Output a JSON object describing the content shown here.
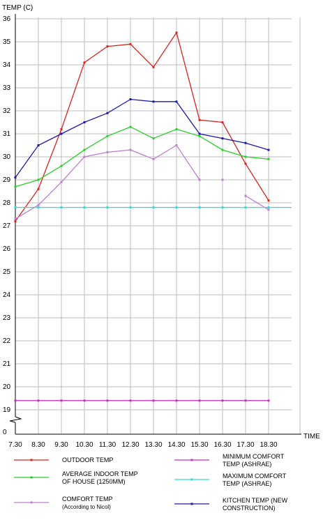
{
  "chart_data": {
    "type": "line",
    "ylabel": "TEMP  (C)",
    "xlabel": "TIME",
    "categories": [
      "7.30",
      "8.30",
      "9.30",
      "10.30",
      "11.30",
      "12.30",
      "13.30",
      "14.30",
      "15.30",
      "16.30",
      "17.30",
      "18.30"
    ],
    "y_ticks": [
      "0",
      "19",
      "20",
      "21",
      "22",
      "23",
      "24",
      "25",
      "26",
      "27",
      "28",
      "29",
      "30",
      "31",
      "32",
      "33",
      "34",
      "35",
      "36"
    ],
    "axis_break": "between 0 and 19",
    "ylim": [
      19,
      36
    ],
    "grid": true,
    "legend_position": "bottom",
    "series": [
      {
        "name": "OUTDOOR TEMP",
        "color": "#d9231c",
        "values": [
          27.2,
          28.6,
          31.2,
          34.1,
          34.8,
          34.9,
          33.9,
          35.4,
          31.6,
          31.5,
          29.7,
          28.1
        ]
      },
      {
        "name": "AVERAGE INDOOR TEMP OF HOUSE (1250MM)",
        "color": "#27cf27",
        "values": [
          28.7,
          29.0,
          29.6,
          30.3,
          30.9,
          31.3,
          30.8,
          31.2,
          30.9,
          30.3,
          30.0,
          29.9
        ]
      },
      {
        "name": "COMFORT TEMP (According to Nicol)",
        "color": "#c07ed0",
        "values": [
          27.3,
          27.9,
          28.9,
          30.0,
          30.2,
          30.3,
          29.9,
          30.5,
          29.0,
          null,
          28.3,
          27.7
        ],
        "extra_points": [
          {
            "x": "16.30",
            "y": 29.0
          }
        ]
      },
      {
        "name": "MINIMUM COMFORT TEMP (ASHRAE)",
        "color": "#c82fc8",
        "values": [
          19.4,
          19.4,
          19.4,
          19.4,
          19.4,
          19.4,
          19.4,
          19.4,
          19.4,
          19.4,
          19.4,
          19.4
        ]
      },
      {
        "name": "MAXIMUM COMFORT TEMP (ASHRAE)",
        "color": "#2fd9d9",
        "values": [
          27.8,
          27.8,
          27.8,
          27.8,
          27.8,
          27.8,
          27.8,
          27.8,
          27.8,
          27.8,
          27.8,
          27.8
        ],
        "full_width": true
      },
      {
        "name": "KITCHEN TEMP (NEW CONSTRUCTION)",
        "color": "#1a1aa8",
        "values": [
          29.1,
          30.5,
          31.0,
          31.5,
          31.9,
          32.5,
          32.4,
          32.4,
          31.0,
          30.8,
          30.6,
          30.3
        ]
      }
    ],
    "legend": [
      {
        "series": 0,
        "lines": [
          "OUTDOOR TEMP"
        ]
      },
      {
        "series": 1,
        "lines": [
          "AVERAGE INDOOR TEMP",
          "OF HOUSE (1250MM)"
        ]
      },
      {
        "series": 2,
        "lines": [
          "COMFORT TEMP",
          "(According to Nicol)"
        ]
      },
      {
        "series": 3,
        "lines": [
          "MINIMUM COMFORT",
          "TEMP (ASHRAE)"
        ]
      },
      {
        "series": 4,
        "lines": [
          "MAXIMUM COMFORT",
          "TEMP (ASHRAE)"
        ]
      },
      {
        "series": 5,
        "lines": [
          "KITCHEN TEMP (NEW",
          "CONSTRUCTION)"
        ]
      }
    ]
  }
}
